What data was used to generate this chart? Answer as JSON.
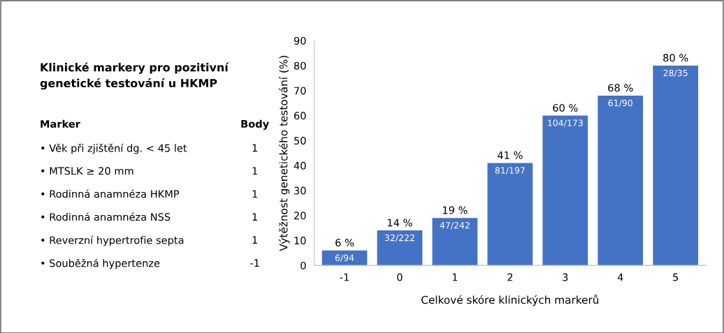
{
  "chart_data": [
    {
      "type": "other",
      "title": "Klinické markery pro pozitivní genetické testování u HKMP",
      "annotations": [
        "Marker",
        "Body"
      ],
      "categories": [
        "• Věk při zjištění dg. < 45 let",
        "• MTSLK ≥ 20 mm",
        "• Rodinná anamnéza HKMP",
        "• Rodinná anamnéza NSS",
        "• Reverzní hypertrofie septa",
        "• Souběžná hypertenze"
      ],
      "values": [
        1,
        1,
        1,
        1,
        1,
        -1
      ],
      "data_labels": true
    },
    {
      "type": "bar",
      "xlabel": "Celkové skóre klinických markerů",
      "ylabel": "Výtěžnost genetického testování (%)",
      "categories": [
        "-1",
        "0",
        "1",
        "2",
        "3",
        "4",
        "5"
      ],
      "values": [
        6,
        14,
        19,
        41,
        60,
        68,
        80
      ],
      "color": "#4472c4",
      "value_labels": [
        "6 %",
        "14 %",
        "19 %",
        "41 %",
        "60 %",
        "68 %",
        "80 %"
      ],
      "annotations": [
        {
          "text": "6/94",
          "x": "-1",
          "y": 6
        },
        {
          "text": "32/222",
          "x": "0",
          "y": 14
        },
        {
          "text": "47/242",
          "x": "1",
          "y": 19
        },
        {
          "text": "81/197",
          "x": "2",
          "y": 41
        },
        {
          "text": "104/173",
          "x": "3",
          "y": 60
        },
        {
          "text": "61/90",
          "x": "4",
          "y": 68
        },
        {
          "text": "28/35",
          "x": "5",
          "y": 80
        }
      ],
      "ylim": [
        0,
        90
      ],
      "yticks": [
        0,
        10,
        20,
        30,
        40,
        50,
        60,
        70,
        80,
        90
      ],
      "grid": false,
      "legend": false
    }
  ]
}
